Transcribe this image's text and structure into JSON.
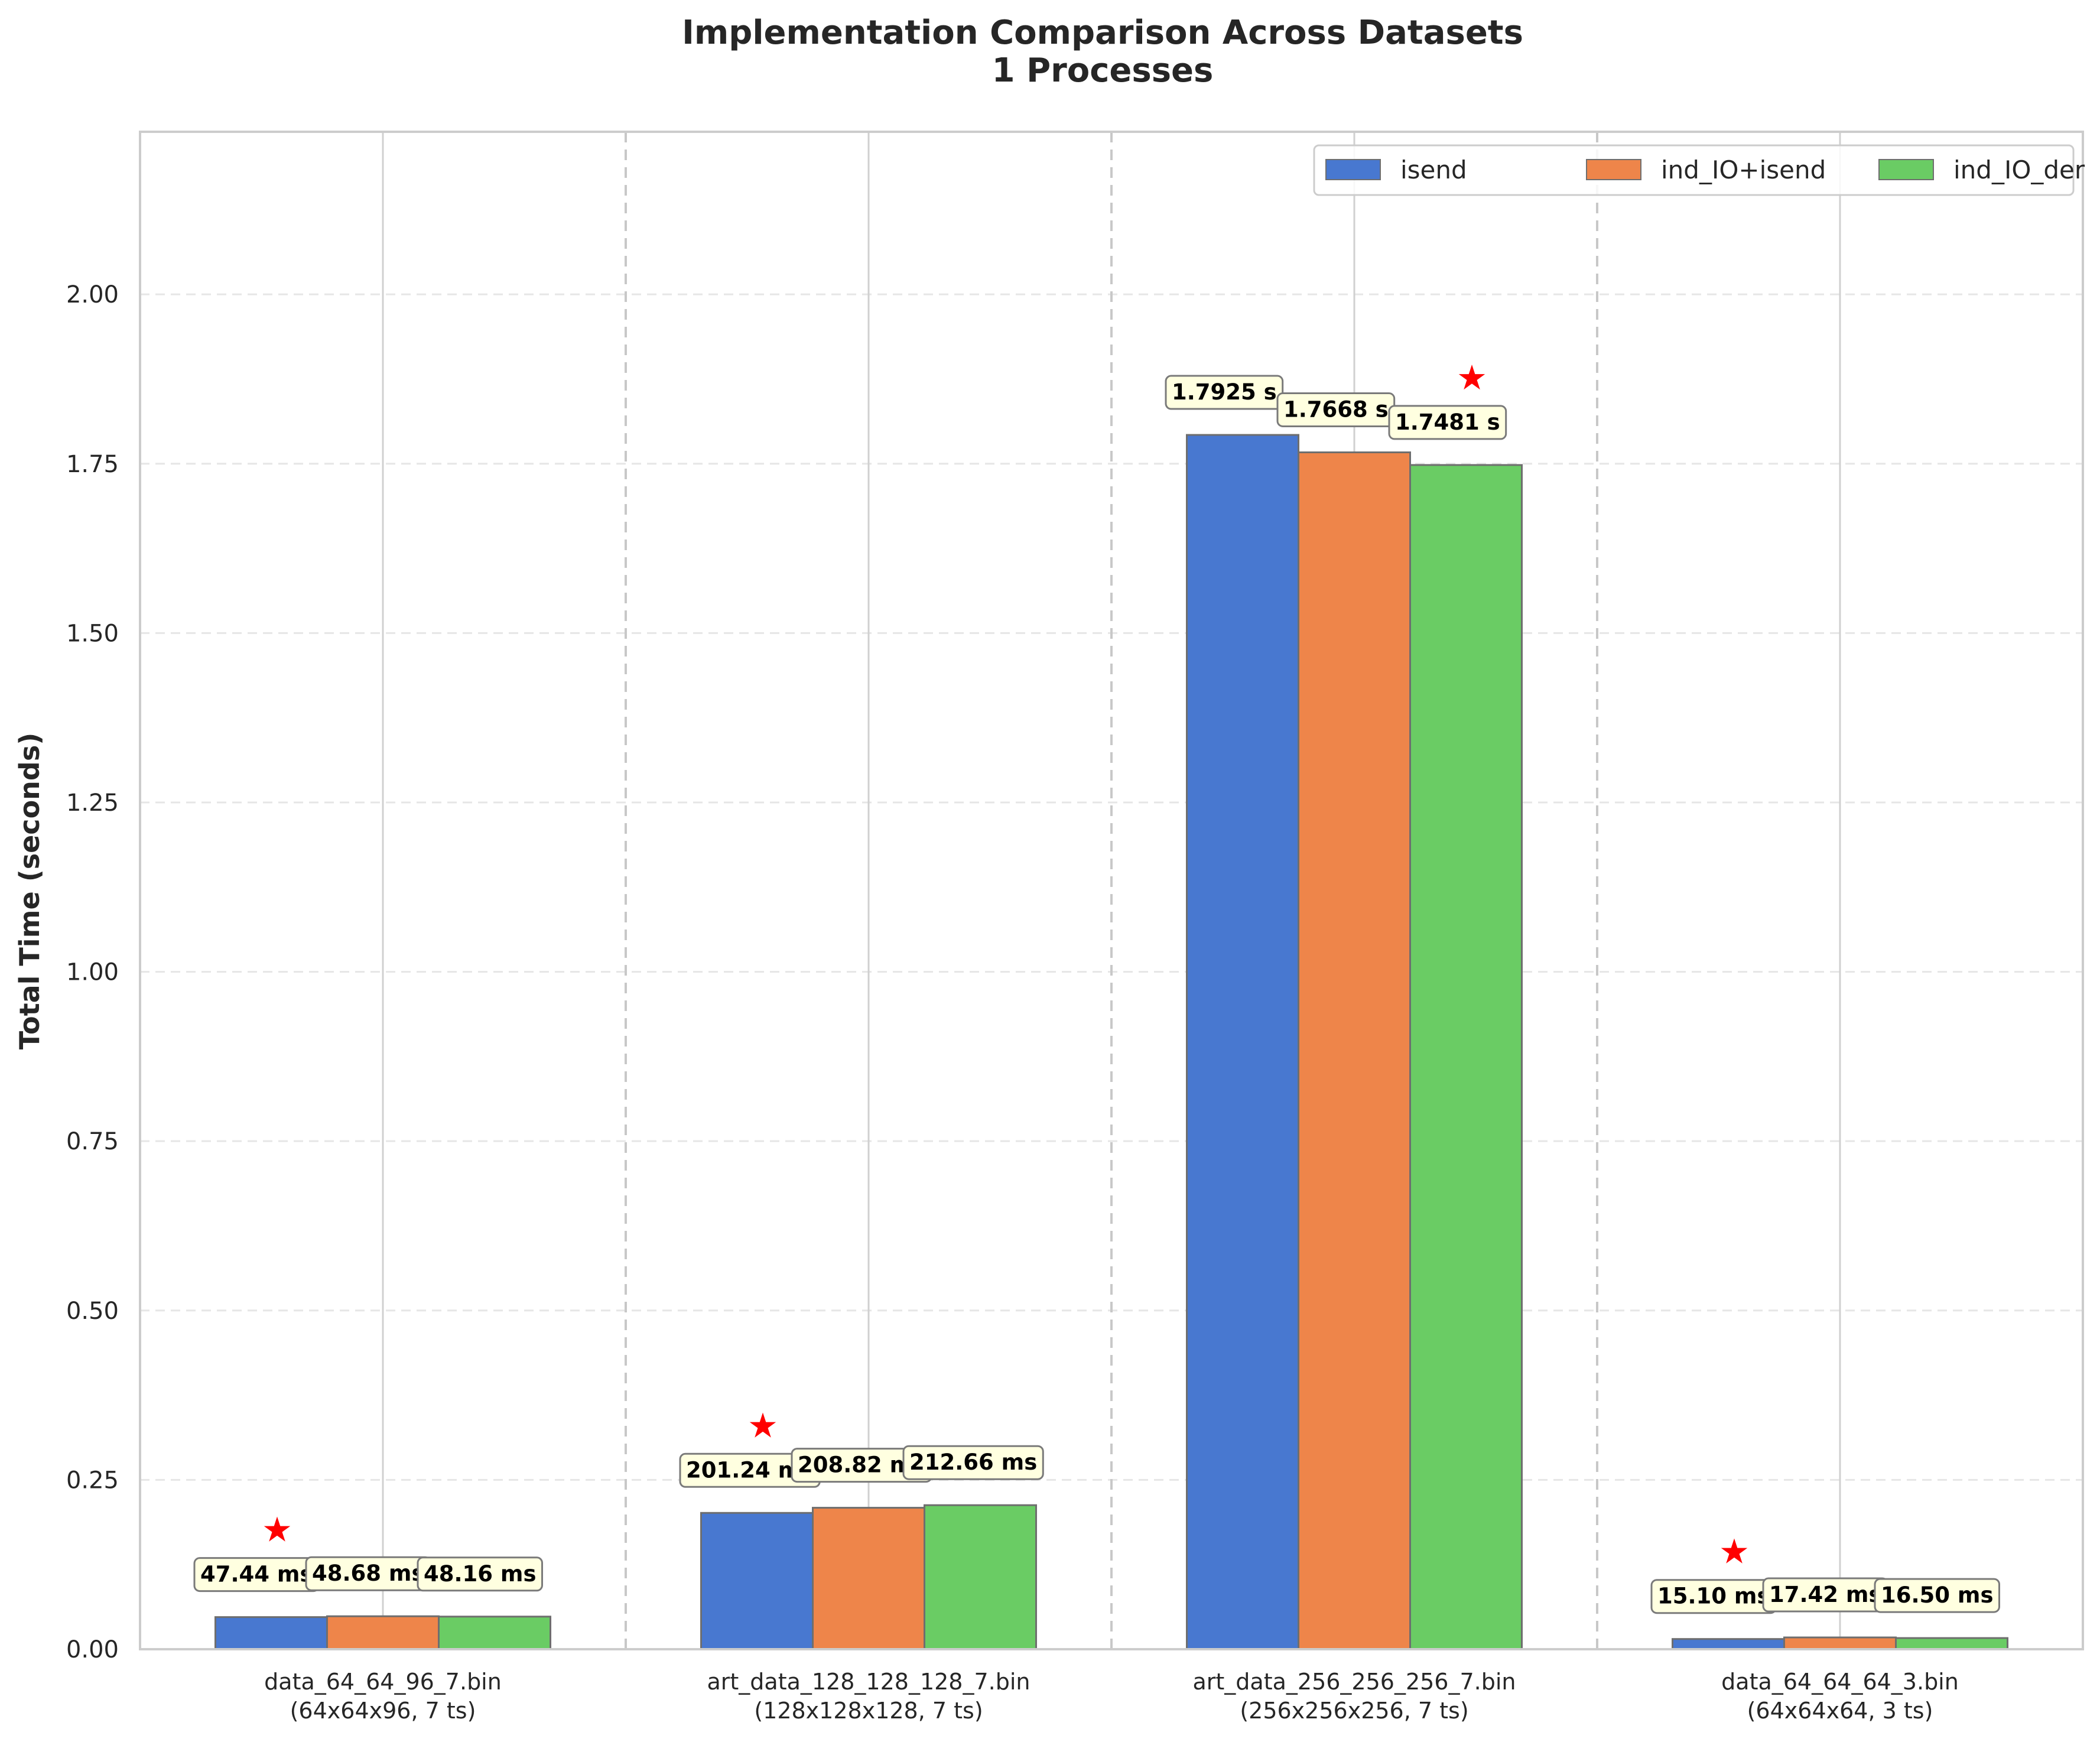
{
  "chart_data": {
    "type": "bar",
    "title": "Implementation Comparison Across Datasets",
    "subtitle": "1 Processes",
    "xlabel": "",
    "ylabel": "Total Time (seconds)",
    "ylim": [
      0,
      2.24
    ],
    "yticks": [
      "0.00",
      "0.25",
      "0.50",
      "0.75",
      "1.00",
      "1.25",
      "1.50",
      "1.75",
      "2.00"
    ],
    "grid": "y dashed",
    "legend": "top-right",
    "categories": [
      {
        "name": "data_64_64_96_7.bin",
        "detail": "(64x64x96, 7 ts)"
      },
      {
        "name": "art_data_128_128_128_7.bin",
        "detail": "(128x128x128, 7 ts)"
      },
      {
        "name": "art_data_256_256_256_7.bin",
        "detail": "(256x256x256, 7 ts)"
      },
      {
        "name": "data_64_64_64_3.bin",
        "detail": "(64x64x64, 3 ts)"
      }
    ],
    "series": [
      {
        "name": "isend",
        "color": "#4878d0",
        "values": [
          0.04744,
          0.20124,
          1.7925,
          0.0151
        ],
        "labels": [
          "47.44 ms",
          "201.24 ms",
          "1.7925 s",
          "15.10 ms"
        ]
      },
      {
        "name": "ind_IO+isend",
        "color": "#ee854a",
        "values": [
          0.04868,
          0.20882,
          1.7668,
          0.01742
        ],
        "labels": [
          "48.68 ms",
          "208.82 ms",
          "1.7668 s",
          "17.42 ms"
        ]
      },
      {
        "name": "ind_IO_der",
        "color": "#6acc64",
        "values": [
          0.04816,
          0.21266,
          1.7481,
          0.0165
        ],
        "labels": [
          "48.16 ms",
          "212.66 ms",
          "1.7481 s",
          "16.50 ms"
        ]
      }
    ],
    "best_markers": [
      {
        "category": 0,
        "series": 0,
        "symbol": "★",
        "color": "#ff0000"
      },
      {
        "category": 1,
        "series": 0,
        "symbol": "★",
        "color": "#ff0000"
      },
      {
        "category": 2,
        "series": 2,
        "symbol": "★",
        "color": "#ff0000"
      },
      {
        "category": 3,
        "series": 0,
        "symbol": "★",
        "color": "#ff0000"
      }
    ]
  }
}
